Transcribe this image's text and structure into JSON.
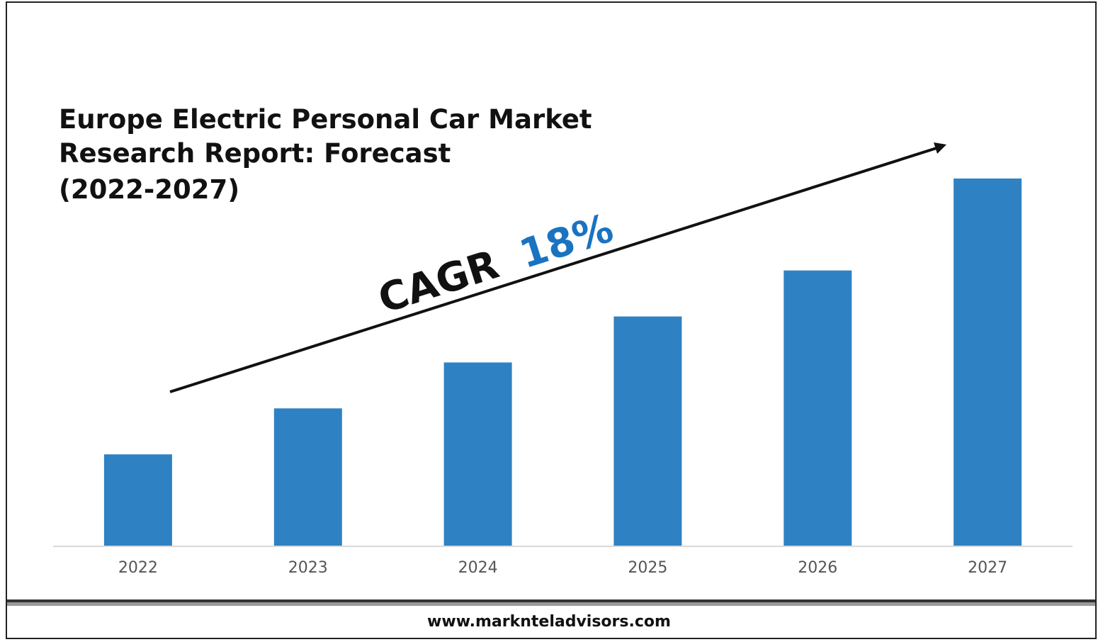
{
  "title_lines": [
    "Europe Electric Personal Car Market",
    "Research Report: Forecast",
    "(2022-2027)"
  ],
  "cagr": {
    "label": "CAGR",
    "value": "18%"
  },
  "footer": {
    "url": "www.marknteladvisors.com"
  },
  "colors": {
    "bar": "#2e82c3",
    "cagr_value": "#1a73c0",
    "text": "#111111",
    "tick_text": "#555555",
    "baseline": "#d9d9d9",
    "border": "#222222"
  },
  "chart_data": {
    "type": "bar",
    "title": "Europe Electric Personal Car Market Research Report: Forecast (2022-2027)",
    "categories": [
      "2022",
      "2023",
      "2024",
      "2025",
      "2026",
      "2027"
    ],
    "values": [
      1.0,
      1.5,
      2.0,
      2.5,
      3.0,
      4.0
    ],
    "xlabel": "",
    "ylabel": "",
    "ylim": [
      0,
      4.4
    ],
    "grid": false,
    "legend": "none",
    "annotations": [
      "CAGR 18%"
    ]
  }
}
